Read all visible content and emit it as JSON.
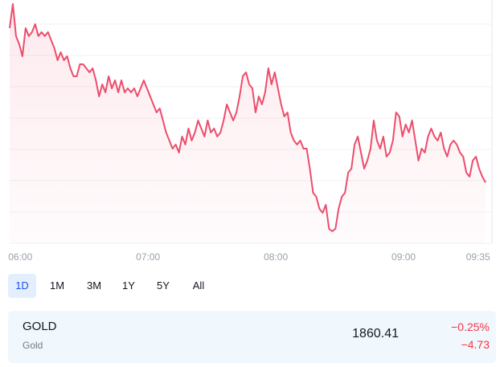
{
  "chart_data": {
    "type": "line",
    "color": "#ec4d6c",
    "xlim": [
      355,
      580
    ],
    "ylim": [
      1857.38,
      1869.5
    ],
    "xticks": [
      {
        "value": 360,
        "label": "06:00"
      },
      {
        "value": 420,
        "label": "07:00"
      },
      {
        "value": 480,
        "label": "08:00"
      },
      {
        "value": 540,
        "label": "09:00"
      },
      {
        "value": 575,
        "label": "09:35"
      }
    ],
    "x": [
      355,
      356.5,
      358,
      359.5,
      361,
      362.5,
      364,
      365.5,
      367,
      368.5,
      370,
      371.5,
      373,
      374.5,
      376,
      377.5,
      379,
      380.5,
      382,
      383.5,
      385,
      386.5,
      388,
      389.5,
      391,
      392.5,
      394,
      395.5,
      397,
      398.5,
      400,
      401.5,
      403,
      404.5,
      406,
      407.5,
      409,
      410.5,
      412,
      413.5,
      415,
      416.5,
      418,
      419.5,
      421,
      422.5,
      424,
      425.5,
      427,
      428.5,
      430,
      431.5,
      433,
      434.5,
      436,
      437.5,
      439,
      440.5,
      442,
      443.5,
      445,
      446.5,
      448,
      449.5,
      451,
      452.5,
      454,
      455.5,
      457,
      458.5,
      460,
      461.5,
      463,
      464.5,
      466,
      467.5,
      469,
      470.5,
      472,
      473.5,
      475,
      476.5,
      478,
      479.5,
      481,
      482.5,
      484,
      485.5,
      487,
      488.5,
      490,
      491.5,
      493,
      494.5,
      496,
      497.5,
      499,
      500.5,
      502,
      503.5,
      505,
      506.5,
      508,
      509.5,
      511,
      512.5,
      514,
      515.5,
      517,
      518.5,
      520,
      521.5,
      523,
      524.5,
      526,
      527.5,
      529,
      530.5,
      532,
      533.5,
      535,
      536.5,
      538,
      539.5,
      541,
      542.5,
      544,
      545.5,
      547,
      548.5,
      550,
      551.5,
      553,
      554.5,
      556,
      557.5,
      559,
      560.5,
      562,
      563.5,
      565,
      566.5,
      568,
      569.5,
      571,
      572.5,
      574,
      575.5,
      577,
      578.5
    ],
    "values": [
      1868.1,
      1869.3,
      1867.7,
      1867.3,
      1866.7,
      1868.1,
      1867.7,
      1867.9,
      1868.3,
      1867.7,
      1867.9,
      1867.7,
      1867.9,
      1867.5,
      1867.1,
      1866.5,
      1866.9,
      1866.5,
      1866.7,
      1866.1,
      1865.7,
      1865.7,
      1866.3,
      1866.3,
      1866.1,
      1865.9,
      1866.1,
      1865.5,
      1864.7,
      1865.3,
      1864.9,
      1865.7,
      1865.1,
      1865.5,
      1864.9,
      1865.5,
      1864.9,
      1865.1,
      1864.9,
      1865.1,
      1864.7,
      1865.1,
      1865.5,
      1865.1,
      1864.7,
      1864.3,
      1863.9,
      1864.1,
      1863.5,
      1862.9,
      1862.5,
      1862.1,
      1862.3,
      1861.9,
      1862.7,
      1862.3,
      1863.1,
      1862.5,
      1862.9,
      1863.5,
      1863.1,
      1862.7,
      1863.5,
      1862.9,
      1863.1,
      1862.7,
      1862.9,
      1863.5,
      1864.3,
      1863.9,
      1863.5,
      1863.9,
      1864.7,
      1865.7,
      1865.9,
      1865.3,
      1865.1,
      1863.9,
      1864.7,
      1864.3,
      1864.9,
      1866.1,
      1865.3,
      1865.9,
      1865.1,
      1864.3,
      1863.7,
      1863.9,
      1862.9,
      1862.5,
      1862.3,
      1862.5,
      1862.1,
      1862.1,
      1861.1,
      1859.9,
      1859.7,
      1859.1,
      1858.9,
      1859.3,
      1858.1,
      1857.98,
      1858.1,
      1859.1,
      1859.7,
      1859.9,
      1860.9,
      1861.1,
      1862.3,
      1862.7,
      1861.9,
      1861.1,
      1861.5,
      1862.1,
      1863.5,
      1862.5,
      1862.1,
      1862.7,
      1861.7,
      1861.9,
      1862.5,
      1863.9,
      1863.7,
      1862.7,
      1863.3,
      1862.9,
      1863.5,
      1862.5,
      1861.5,
      1862.1,
      1861.9,
      1862.7,
      1863.1,
      1862.7,
      1862.5,
      1862.9,
      1862.1,
      1861.7,
      1862.3,
      1862.5,
      1862.3,
      1861.9,
      1861.7,
      1860.9,
      1860.7,
      1861.5,
      1861.7,
      1861.1,
      1860.7,
      1860.41
    ]
  },
  "ranges": {
    "options": [
      "1D",
      "1M",
      "3M",
      "1Y",
      "5Y",
      "All"
    ],
    "selected": "1D"
  },
  "ticker": {
    "symbol": "GOLD",
    "name": "Gold",
    "price": "1860.41",
    "change_percent": "−0.25%",
    "change": "−4.73"
  }
}
